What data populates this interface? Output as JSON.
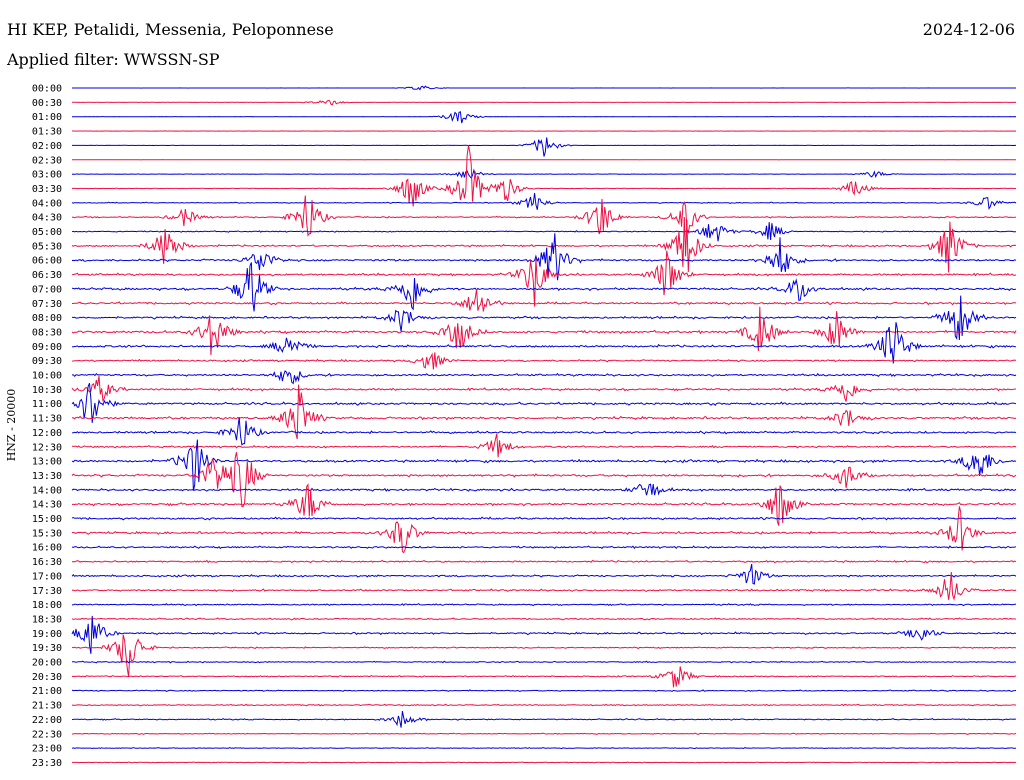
{
  "header": {
    "station": "HI KEP, Petalidi, Messenia, Peloponnese",
    "date": "2024-12-06",
    "filter": "Applied filter: WWSSN-SP",
    "channel_label": "HNZ - 20000"
  },
  "colors": {
    "even_row": "#0000dd",
    "odd_row": "#ee1144"
  },
  "chart_data": {
    "type": "line",
    "chart_kind": "helicorder",
    "rows": [
      {
        "label": "00:00",
        "activity": 0.02,
        "events": [
          {
            "t": 0.37,
            "a": 0.12
          }
        ]
      },
      {
        "label": "00:30",
        "activity": 0.03,
        "events": [
          {
            "t": 0.27,
            "a": 0.2
          }
        ]
      },
      {
        "label": "01:00",
        "activity": 0.04,
        "events": [
          {
            "t": 0.41,
            "a": 0.35
          }
        ]
      },
      {
        "label": "01:30",
        "activity": 0.03,
        "events": []
      },
      {
        "label": "02:00",
        "activity": 0.04,
        "events": [
          {
            "t": 0.5,
            "a": 0.5
          }
        ]
      },
      {
        "label": "02:30",
        "activity": 0.03,
        "events": []
      },
      {
        "label": "03:00",
        "activity": 0.06,
        "events": [
          {
            "t": 0.42,
            "a": 0.3
          },
          {
            "t": 0.85,
            "a": 0.15
          }
        ]
      },
      {
        "label": "03:30",
        "activity": 0.1,
        "events": [
          {
            "t": 0.36,
            "a": 0.9
          },
          {
            "t": 0.42,
            "a": 1.6
          },
          {
            "t": 0.46,
            "a": 0.6
          },
          {
            "t": 0.83,
            "a": 0.4
          }
        ]
      },
      {
        "label": "04:00",
        "activity": 0.15,
        "events": [
          {
            "t": 0.49,
            "a": 0.4
          },
          {
            "t": 0.97,
            "a": 0.3
          }
        ]
      },
      {
        "label": "04:30",
        "activity": 0.2,
        "events": [
          {
            "t": 0.12,
            "a": 0.4
          },
          {
            "t": 0.25,
            "a": 1.2
          },
          {
            "t": 0.56,
            "a": 1.0
          },
          {
            "t": 0.65,
            "a": 0.8
          }
        ]
      },
      {
        "label": "05:00",
        "activity": 0.18,
        "events": [
          {
            "t": 0.68,
            "a": 0.6
          },
          {
            "t": 0.74,
            "a": 0.4
          }
        ]
      },
      {
        "label": "05:30",
        "activity": 0.3,
        "events": [
          {
            "t": 0.1,
            "a": 1.0
          },
          {
            "t": 0.65,
            "a": 1.5
          },
          {
            "t": 0.93,
            "a": 1.2
          }
        ]
      },
      {
        "label": "06:00",
        "activity": 0.35,
        "events": [
          {
            "t": 0.2,
            "a": 0.6
          },
          {
            "t": 0.51,
            "a": 1.3
          },
          {
            "t": 0.75,
            "a": 0.9
          }
        ]
      },
      {
        "label": "06:30",
        "activity": 0.35,
        "events": [
          {
            "t": 0.49,
            "a": 1.2
          },
          {
            "t": 0.63,
            "a": 1.1
          }
        ]
      },
      {
        "label": "07:00",
        "activity": 0.4,
        "events": [
          {
            "t": 0.19,
            "a": 1.4
          },
          {
            "t": 0.36,
            "a": 1.0
          },
          {
            "t": 0.77,
            "a": 0.6
          }
        ]
      },
      {
        "label": "07:30",
        "activity": 0.35,
        "events": [
          {
            "t": 0.43,
            "a": 0.8
          }
        ]
      },
      {
        "label": "08:00",
        "activity": 0.35,
        "events": [
          {
            "t": 0.35,
            "a": 0.6
          },
          {
            "t": 0.94,
            "a": 1.2
          }
        ]
      },
      {
        "label": "08:30",
        "activity": 0.4,
        "events": [
          {
            "t": 0.15,
            "a": 1.2
          },
          {
            "t": 0.41,
            "a": 0.9
          },
          {
            "t": 0.73,
            "a": 1.1
          },
          {
            "t": 0.81,
            "a": 0.9
          }
        ]
      },
      {
        "label": "09:00",
        "activity": 0.4,
        "events": [
          {
            "t": 0.23,
            "a": 0.6
          },
          {
            "t": 0.87,
            "a": 1.4
          }
        ]
      },
      {
        "label": "09:30",
        "activity": 0.3,
        "events": [
          {
            "t": 0.38,
            "a": 0.5
          }
        ]
      },
      {
        "label": "10:00",
        "activity": 0.35,
        "events": [
          {
            "t": 0.23,
            "a": 0.5
          }
        ]
      },
      {
        "label": "10:30",
        "activity": 0.35,
        "events": [
          {
            "t": 0.03,
            "a": 0.6
          },
          {
            "t": 0.82,
            "a": 0.6
          }
        ]
      },
      {
        "label": "11:00",
        "activity": 0.4,
        "events": [
          {
            "t": 0.02,
            "a": 1.2
          }
        ]
      },
      {
        "label": "11:30",
        "activity": 0.4,
        "events": [
          {
            "t": 0.24,
            "a": 1.4
          },
          {
            "t": 0.82,
            "a": 0.5
          }
        ]
      },
      {
        "label": "12:00",
        "activity": 0.35,
        "events": [
          {
            "t": 0.18,
            "a": 0.8
          }
        ]
      },
      {
        "label": "12:30",
        "activity": 0.3,
        "events": [
          {
            "t": 0.45,
            "a": 0.5
          }
        ]
      },
      {
        "label": "13:00",
        "activity": 0.4,
        "events": [
          {
            "t": 0.13,
            "a": 1.3
          },
          {
            "t": 0.96,
            "a": 1.0
          }
        ]
      },
      {
        "label": "13:30",
        "activity": 0.4,
        "events": [
          {
            "t": 0.15,
            "a": 0.9
          },
          {
            "t": 0.18,
            "a": 1.6
          },
          {
            "t": 0.82,
            "a": 0.6
          }
        ]
      },
      {
        "label": "14:00",
        "activity": 0.35,
        "events": [
          {
            "t": 0.61,
            "a": 0.5
          }
        ]
      },
      {
        "label": "14:30",
        "activity": 0.4,
        "events": [
          {
            "t": 0.25,
            "a": 0.9
          },
          {
            "t": 0.75,
            "a": 1.1
          }
        ]
      },
      {
        "label": "15:00",
        "activity": 0.35,
        "events": []
      },
      {
        "label": "15:30",
        "activity": 0.35,
        "events": [
          {
            "t": 0.35,
            "a": 1.0
          },
          {
            "t": 0.94,
            "a": 1.0
          }
        ]
      },
      {
        "label": "16:00",
        "activity": 0.3,
        "events": []
      },
      {
        "label": "16:30",
        "activity": 0.3,
        "events": []
      },
      {
        "label": "17:00",
        "activity": 0.3,
        "events": [
          {
            "t": 0.72,
            "a": 0.5
          }
        ]
      },
      {
        "label": "17:30",
        "activity": 0.3,
        "events": [
          {
            "t": 0.93,
            "a": 0.8
          }
        ]
      },
      {
        "label": "18:00",
        "activity": 0.25,
        "events": []
      },
      {
        "label": "18:30",
        "activity": 0.25,
        "events": []
      },
      {
        "label": "19:00",
        "activity": 0.3,
        "events": [
          {
            "t": 0.02,
            "a": 1.0
          },
          {
            "t": 0.9,
            "a": 0.4
          }
        ]
      },
      {
        "label": "19:30",
        "activity": 0.2,
        "events": [
          {
            "t": 0.06,
            "a": 1.3
          }
        ]
      },
      {
        "label": "20:00",
        "activity": 0.2,
        "events": []
      },
      {
        "label": "20:30",
        "activity": 0.2,
        "events": [
          {
            "t": 0.64,
            "a": 0.6
          }
        ]
      },
      {
        "label": "21:00",
        "activity": 0.2,
        "events": []
      },
      {
        "label": "21:30",
        "activity": 0.2,
        "events": []
      },
      {
        "label": "22:00",
        "activity": 0.2,
        "events": [
          {
            "t": 0.35,
            "a": 0.4
          }
        ]
      },
      {
        "label": "22:30",
        "activity": 0.15,
        "events": []
      },
      {
        "label": "23:00",
        "activity": 0.12,
        "events": []
      },
      {
        "label": "23:30",
        "activity": 0.12,
        "events": []
      }
    ]
  }
}
